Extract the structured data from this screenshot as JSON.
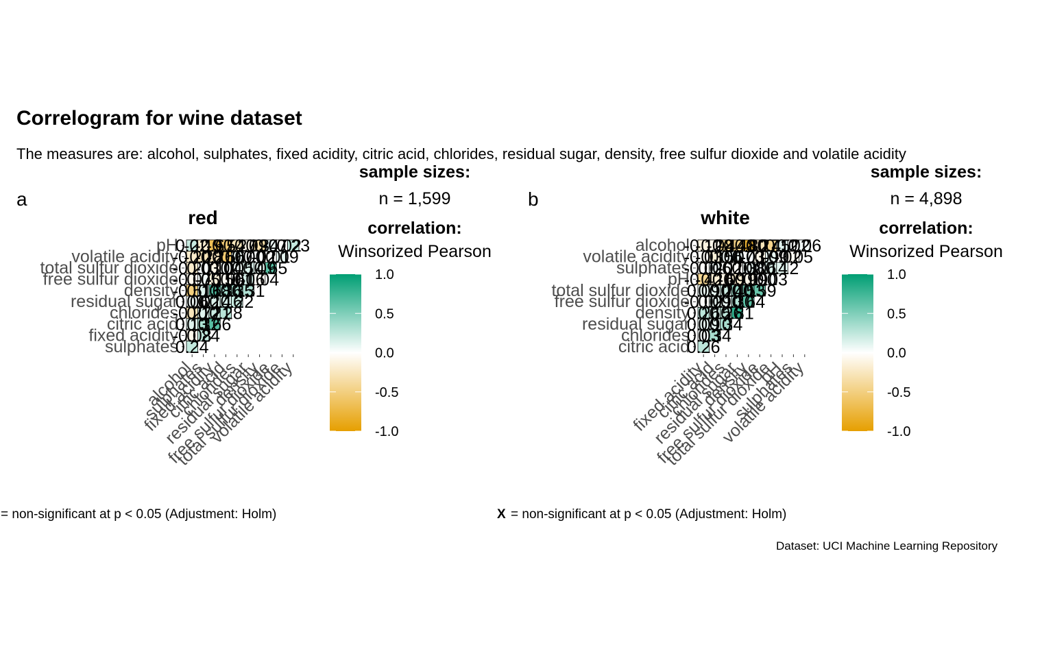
{
  "title": "Correlogram for wine dataset",
  "subtitle": "The measures are: alcohol, sulphates, fixed acidity, citric acid, chlorides, residual sugar, density, free sulfur dioxide and volatile acidity",
  "caption": "Dataset: UCI Machine Learning Repository",
  "colors": {
    "low": "#E69F00",
    "mid": "#FFFFFF",
    "high": "#009E73"
  },
  "chart_data": [
    {
      "type": "heatmap",
      "tag": "a",
      "title": "red",
      "sample_sizes_label": "sample sizes:",
      "n_label": "n = 1,599",
      "legend_title": "correlation:",
      "legend_subtitle": "Winsorized Pearson",
      "legend_ticks": [
        "1.0",
        "0.5",
        "0.0",
        "-0.5",
        "-1.0"
      ],
      "legend_values": [
        1.0,
        0.5,
        0.0,
        -0.5,
        -1.0
      ],
      "footnote": "= non-significant at p < 0.05 (Adjustment: Holm)",
      "x_labels": [
        "alcohol",
        "sulphates",
        "fixed acidity",
        "citric acid",
        "chlorides",
        "residual sugar",
        "density",
        "free sulfur dioxide",
        "total sulfur dioxide",
        "volatile acidity"
      ],
      "y_labels": [
        "pH",
        "volatile acidity",
        "total sulfur dioxide",
        "free sulfur dioxide",
        "density",
        "residual sugar",
        "chlorides",
        "citric acid",
        "fixed acidity",
        "sulphates"
      ],
      "cells": [
        {
          "x": 0,
          "y": 0,
          "value": 0.22,
          "label": "0.22"
        },
        {
          "x": 1,
          "y": 0,
          "value": -0.19,
          "label": "-0.19"
        },
        {
          "x": 2,
          "y": 0,
          "value": -0.67,
          "label": "-0.67"
        },
        {
          "x": 3,
          "y": 0,
          "value": -0.54,
          "label": "-0.54"
        },
        {
          "x": 4,
          "y": 0,
          "value": -0.27,
          "label": "-0.27"
        },
        {
          "x": 5,
          "y": 0,
          "value": -0.09,
          "label": "-0.09"
        },
        {
          "x": 6,
          "y": 0,
          "value": -0.34,
          "label": "-0.34"
        },
        {
          "x": 7,
          "y": 0,
          "value": 0.07,
          "label": "0.07"
        },
        {
          "x": 8,
          "y": 0,
          "value": -0.02,
          "label": "-0.02"
        },
        {
          "x": 9,
          "y": 0,
          "value": 0.23,
          "label": "0.23"
        },
        {
          "x": 0,
          "y": 1,
          "value": -0.2,
          "label": "-0.20"
        },
        {
          "x": 1,
          "y": 1,
          "value": -0.28,
          "label": "-0.28"
        },
        {
          "x": 2,
          "y": 1,
          "value": -0.26,
          "label": "-0.26"
        },
        {
          "x": 3,
          "y": 1,
          "value": -0.56,
          "label": "-0.56"
        },
        {
          "x": 4,
          "y": 1,
          "value": 0.07,
          "label": "0.07"
        },
        {
          "x": 5,
          "y": 1,
          "value": 0.0,
          "label": "0.00"
        },
        {
          "x": 6,
          "y": 1,
          "value": 0.02,
          "label": "0.02"
        },
        {
          "x": 7,
          "y": 1,
          "value": -0.01,
          "label": "-0.01"
        },
        {
          "x": 8,
          "y": 1,
          "value": 0.09,
          "label": "0.09"
        },
        {
          "x": 0,
          "y": 2,
          "value": -0.2,
          "label": "-0.20"
        },
        {
          "x": 1,
          "y": 2,
          "value": 0.03,
          "label": "0.03"
        },
        {
          "x": 2,
          "y": 2,
          "value": -0.1,
          "label": "-0.10"
        },
        {
          "x": 3,
          "y": 2,
          "value": 0.04,
          "label": "0.04"
        },
        {
          "x": 4,
          "y": 2,
          "value": 0.05,
          "label": "0.05"
        },
        {
          "x": 5,
          "y": 2,
          "value": 0.14,
          "label": "0.14"
        },
        {
          "x": 6,
          "y": 2,
          "value": 0.09,
          "label": "0.09"
        },
        {
          "x": 7,
          "y": 2,
          "value": 0.65,
          "label": "0.65"
        },
        {
          "x": 0,
          "y": 3,
          "value": -0.07,
          "label": "-0.07"
        },
        {
          "x": 1,
          "y": 3,
          "value": 0.05,
          "label": "0.05"
        },
        {
          "x": 2,
          "y": 3,
          "value": -0.15,
          "label": "-0.15"
        },
        {
          "x": 3,
          "y": 3,
          "value": -0.06,
          "label": "-0.06"
        },
        {
          "x": 4,
          "y": 3,
          "value": 0.01,
          "label": "0.01"
        },
        {
          "x": 5,
          "y": 3,
          "value": 0.16,
          "label": "0.16"
        },
        {
          "x": 6,
          "y": 3,
          "value": -0.04,
          "label": "-0.04"
        },
        {
          "x": 0,
          "y": 4,
          "value": -0.51,
          "label": "-0.51"
        },
        {
          "x": 1,
          "y": 4,
          "value": 0.13,
          "label": "0.13"
        },
        {
          "x": 2,
          "y": 4,
          "value": 0.68,
          "label": "0.68"
        },
        {
          "x": 3,
          "y": 4,
          "value": 0.36,
          "label": "0.36"
        },
        {
          "x": 4,
          "y": 4,
          "value": 0.35,
          "label": "0.35"
        },
        {
          "x": 5,
          "y": 4,
          "value": 0.31,
          "label": "0.31"
        },
        {
          "x": 0,
          "y": 5,
          "value": 0.06,
          "label": "0.06"
        },
        {
          "x": 1,
          "y": 5,
          "value": 0.02,
          "label": "0.02"
        },
        {
          "x": 2,
          "y": 5,
          "value": 0.14,
          "label": "0.14"
        },
        {
          "x": 3,
          "y": 5,
          "value": 0.16,
          "label": "0.16"
        },
        {
          "x": 4,
          "y": 5,
          "value": 0.22,
          "label": "0.22"
        },
        {
          "x": 0,
          "y": 6,
          "value": -0.27,
          "label": "-0.27"
        },
        {
          "x": 1,
          "y": 6,
          "value": 0.12,
          "label": "0.12"
        },
        {
          "x": 2,
          "y": 6,
          "value": 0.21,
          "label": "0.21"
        },
        {
          "x": 3,
          "y": 6,
          "value": 0.28,
          "label": "0.28"
        },
        {
          "x": 0,
          "y": 7,
          "value": 0.13,
          "label": "0.13"
        },
        {
          "x": 1,
          "y": 7,
          "value": 0.32,
          "label": "0.32"
        },
        {
          "x": 2,
          "y": 7,
          "value": 0.66,
          "label": "0.66"
        },
        {
          "x": 0,
          "y": 8,
          "value": -0.08,
          "label": "-0.08"
        },
        {
          "x": 1,
          "y": 8,
          "value": 0.24,
          "label": "0.24"
        },
        {
          "x": 0,
          "y": 9,
          "value": 0.24,
          "label": "0.24"
        }
      ]
    },
    {
      "type": "heatmap",
      "tag": "b",
      "title": "white",
      "sample_sizes_label": "sample sizes:",
      "n_label": "n = 4,898",
      "legend_title": "correlation:",
      "legend_subtitle": "Winsorized Pearson",
      "legend_ticks": [
        "1.0",
        "0.5",
        "0.0",
        "-0.5",
        "-1.0"
      ],
      "legend_values": [
        1.0,
        0.5,
        0.0,
        -0.5,
        -1.0
      ],
      "footnote_marker": "X",
      "footnote": "= non-significant at p < 0.05 (Adjustment: Holm)",
      "x_labels": [
        "fixed acidity",
        "citric acid",
        "chlorides",
        "residual sugar",
        "density",
        "free sulfur dioxide",
        "total sulfur dioxide",
        "pH",
        "sulphates",
        "volatile acidity"
      ],
      "y_labels": [
        "alcohol",
        "volatile acidity",
        "sulphates",
        "pH",
        "total sulfur dioxide",
        "free sulfur dioxide",
        "density",
        "residual sugar",
        "chlorides",
        "citric acid"
      ],
      "cells": [
        {
          "x": 0,
          "y": 0,
          "value": -0.12,
          "label": "-0.12"
        },
        {
          "x": 1,
          "y": 0,
          "value": -0.08,
          "label": "-0.08"
        },
        {
          "x": 2,
          "y": 0,
          "value": -0.44,
          "label": "-0.44"
        },
        {
          "x": 3,
          "y": 0,
          "value": -0.48,
          "label": "-0.48"
        },
        {
          "x": 4,
          "y": 0,
          "value": -0.8,
          "label": "-0.80"
        },
        {
          "x": 5,
          "y": 0,
          "value": -0.27,
          "label": "-0.27"
        },
        {
          "x": 6,
          "y": 0,
          "value": -0.45,
          "label": "-0.45"
        },
        {
          "x": 7,
          "y": 0,
          "value": 0.12,
          "label": "0.12"
        },
        {
          "x": 8,
          "y": 0,
          "value": 0.02,
          "label": "0.02"
        },
        {
          "x": 9,
          "y": 0,
          "value": 0.06,
          "label": "0.06"
        },
        {
          "x": 0,
          "y": 1,
          "value": -0.03,
          "label": "-0.03"
        },
        {
          "x": 1,
          "y": 1,
          "value": -0.15,
          "label": "-0.15"
        },
        {
          "x": 2,
          "y": 1,
          "value": 0.06,
          "label": "0.06"
        },
        {
          "x": 3,
          "y": 1,
          "value": 0.07,
          "label": "0.07"
        },
        {
          "x": 4,
          "y": 1,
          "value": 0.03,
          "label": "0.03"
        },
        {
          "x": 5,
          "y": 1,
          "value": -0.09,
          "label": "-0.09"
        },
        {
          "x": 6,
          "y": 1,
          "value": 0.09,
          "label": "0.09"
        },
        {
          "x": 7,
          "y": 1,
          "value": -0.02,
          "label": "-0.02"
        },
        {
          "x": 8,
          "y": 1,
          "value": -0.05,
          "label": "-0.05"
        },
        {
          "x": 0,
          "y": 2,
          "value": -0.02,
          "label": "-0.02"
        },
        {
          "x": 1,
          "y": 2,
          "value": 0.06,
          "label": "0.06"
        },
        {
          "x": 2,
          "y": 2,
          "value": 0.02,
          "label": "0.02"
        },
        {
          "x": 3,
          "y": 2,
          "value": -0.03,
          "label": "-0.03"
        },
        {
          "x": 4,
          "y": 2,
          "value": 0.08,
          "label": "0.08"
        },
        {
          "x": 5,
          "y": 2,
          "value": 0.06,
          "label": "0.06"
        },
        {
          "x": 6,
          "y": 2,
          "value": 0.14,
          "label": "0.14"
        },
        {
          "x": 7,
          "y": 2,
          "value": 0.12,
          "label": "0.12"
        },
        {
          "x": 0,
          "y": 3,
          "value": -0.42,
          "label": "-0.42"
        },
        {
          "x": 1,
          "y": 3,
          "value": -0.16,
          "label": "-0.16"
        },
        {
          "x": 2,
          "y": 3,
          "value": -0.09,
          "label": "-0.09"
        },
        {
          "x": 3,
          "y": 3,
          "value": -0.19,
          "label": "-0.19"
        },
        {
          "x": 4,
          "y": 3,
          "value": -0.09,
          "label": "-0.09"
        },
        {
          "x": 5,
          "y": 3,
          "value": 0.0,
          "label": "0.00"
        },
        {
          "x": 6,
          "y": 3,
          "value": 0.03,
          "label": "0.03"
        },
        {
          "x": 0,
          "y": 4,
          "value": 0.09,
          "label": "0.09"
        },
        {
          "x": 1,
          "y": 4,
          "value": 0.1,
          "label": "0.10"
        },
        {
          "x": 2,
          "y": 4,
          "value": 0.2,
          "label": "0.20"
        },
        {
          "x": 3,
          "y": 4,
          "value": 0.4,
          "label": "0.40"
        },
        {
          "x": 4,
          "y": 4,
          "value": 0.53,
          "label": "0.53"
        },
        {
          "x": 5,
          "y": 4,
          "value": 0.59,
          "label": "0.59"
        },
        {
          "x": 0,
          "y": 5,
          "value": -0.02,
          "label": "-0.02"
        },
        {
          "x": 1,
          "y": 5,
          "value": 0.09,
          "label": "0.09"
        },
        {
          "x": 2,
          "y": 5,
          "value": 0.1,
          "label": "0.10"
        },
        {
          "x": 3,
          "y": 5,
          "value": 0.3,
          "label": "0.30"
        },
        {
          "x": 4,
          "y": 5,
          "value": 0.64,
          "label": "0.64"
        },
        {
          "x": 0,
          "y": 6,
          "value": 0.26,
          "label": "0.26"
        },
        {
          "x": 1,
          "y": 6,
          "value": 0.15,
          "label": "0.15"
        },
        {
          "x": 2,
          "y": 6,
          "value": 0.26,
          "label": "0.26"
        },
        {
          "x": 3,
          "y": 6,
          "value": 0.81,
          "label": "0.81"
        },
        {
          "x": 0,
          "y": 7,
          "value": 0.09,
          "label": "0.09"
        },
        {
          "x": 1,
          "y": 7,
          "value": 0.1,
          "label": "0.10"
        },
        {
          "x": 2,
          "y": 7,
          "value": 0.34,
          "label": "0.34"
        },
        {
          "x": 0,
          "y": 8,
          "value": 0.03,
          "label": "0.03"
        },
        {
          "x": 1,
          "y": 8,
          "value": 0.34,
          "label": "0.34"
        },
        {
          "x": 0,
          "y": 9,
          "value": 0.26,
          "label": "0.26"
        }
      ]
    }
  ]
}
